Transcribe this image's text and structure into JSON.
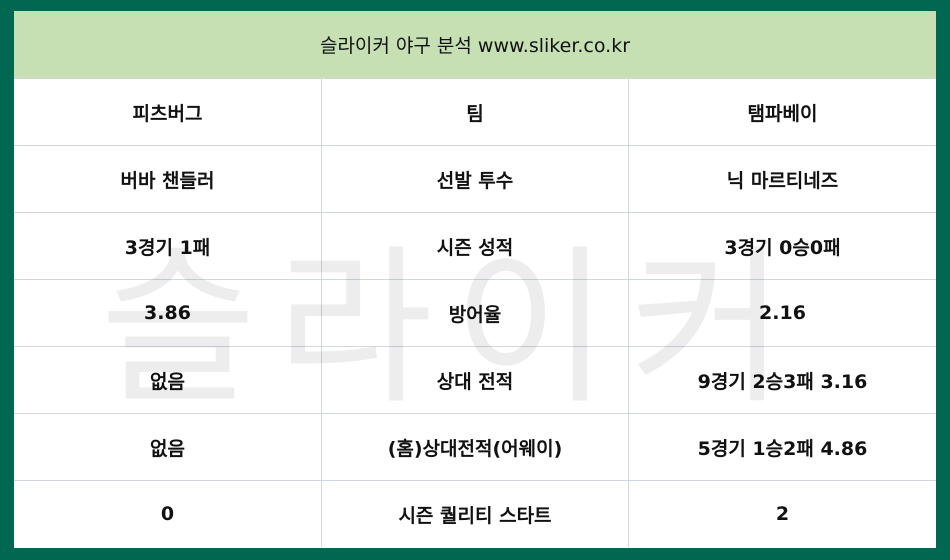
{
  "title": "슬라이커 야구 분석 www.sliker.co.kr",
  "watermark": "슬라이커",
  "colors": {
    "border": "#006850",
    "header_bg": "#c6e0b4",
    "grid": "#d0d7e3"
  },
  "rows": [
    [
      "피츠버그",
      "팀",
      "탬파베이"
    ],
    [
      "버바 챈들러",
      "선발 투수",
      "닉 마르티네즈"
    ],
    [
      "3경기 1패",
      "시즌 성적",
      "3경기 0승0패"
    ],
    [
      "3.86",
      "방어율",
      "2.16"
    ],
    [
      "없음",
      "상대 전적",
      "9경기 2승3패 3.16"
    ],
    [
      "없음",
      "(홈)상대전적(어웨이)",
      "5경기 1승2패 4.86"
    ],
    [
      "0",
      "시즌 퀄리티 스타트",
      "2"
    ]
  ]
}
